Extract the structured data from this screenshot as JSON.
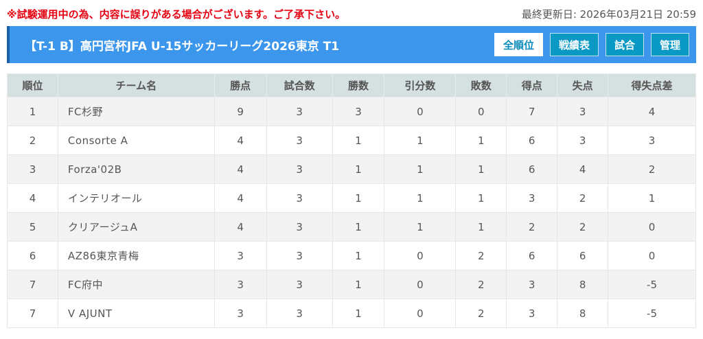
{
  "notice": "※試験運用中の為、内容に誤りがある場合がございます。ご了承下さい。",
  "updated": "最終更新日: 2026年03月21日 20:59",
  "header": {
    "title": "【T-1 B】高円宮杯JFA U-15サッカーリーグ2026東京 T1",
    "buttons": [
      {
        "label": "全順位"
      },
      {
        "label": "戦績表"
      },
      {
        "label": "試合"
      },
      {
        "label": "管理"
      }
    ]
  },
  "table": {
    "columns": [
      "順位",
      "チーム名",
      "勝点",
      "試合数",
      "勝数",
      "引分数",
      "敗数",
      "得点",
      "失点",
      "得失点差"
    ],
    "rows": [
      [
        "1",
        "FC杉野",
        "9",
        "3",
        "3",
        "0",
        "0",
        "7",
        "3",
        "4"
      ],
      [
        "2",
        "Consorte A",
        "4",
        "3",
        "1",
        "1",
        "1",
        "6",
        "3",
        "3"
      ],
      [
        "3",
        "Forza'02B",
        "4",
        "3",
        "1",
        "1",
        "1",
        "6",
        "4",
        "2"
      ],
      [
        "4",
        "インテリオール",
        "4",
        "3",
        "1",
        "1",
        "1",
        "3",
        "2",
        "1"
      ],
      [
        "5",
        "クリアージュA",
        "4",
        "3",
        "1",
        "1",
        "1",
        "2",
        "2",
        "0"
      ],
      [
        "6",
        "AZ86東京青梅",
        "3",
        "3",
        "1",
        "0",
        "2",
        "6",
        "6",
        "0"
      ],
      [
        "7",
        "FC府中",
        "3",
        "3",
        "1",
        "0",
        "2",
        "3",
        "8",
        "-5"
      ],
      [
        "7",
        "V AJUNT",
        "3",
        "3",
        "1",
        "0",
        "2",
        "3",
        "8",
        "-5"
      ]
    ]
  }
}
